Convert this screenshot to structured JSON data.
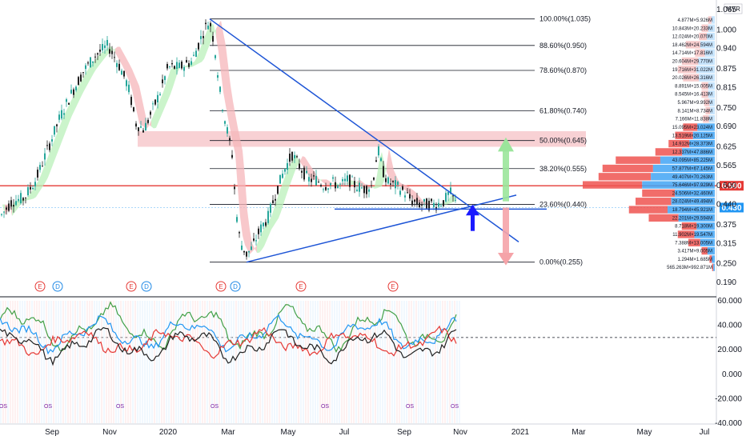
{
  "currency": "MYR",
  "chart_data": [
    {
      "type": "candlestick",
      "panel": "price",
      "x_ticks": [
        "Sep",
        "Nov",
        "2020",
        "Mar",
        "May",
        "Jul",
        "Sep",
        "Nov",
        "2021",
        "Mar",
        "May",
        "Jul"
      ],
      "y_ticks": [
        "1.065",
        "1.000",
        "0.940",
        "0.875",
        "0.815",
        "0.750",
        "0.690",
        "0.625",
        "0.565",
        "0.500",
        "0.440",
        "0.375",
        "0.315",
        "0.250",
        "0.190"
      ],
      "ylim": [
        0.19,
        1.065
      ],
      "last_price": "0.430",
      "resistance_level": "0.500",
      "fib_levels": [
        {
          "label": "100.00%(1.035)",
          "value": 1.035
        },
        {
          "label": "88.60%(0.950)",
          "value": 0.95
        },
        {
          "label": "78.60%(0.870)",
          "value": 0.87
        },
        {
          "label": "61.80%(0.740)",
          "value": 0.74
        },
        {
          "label": "50.00%(0.645)",
          "value": 0.645
        },
        {
          "label": "38.20%(0.555)",
          "value": 0.555
        },
        {
          "label": "23.60%(0.440)",
          "value": 0.44
        },
        {
          "label": "0.00%(0.255)",
          "value": 0.255
        }
      ],
      "volume_profile_labels": [
        "4.877M×5.926M",
        "10.843M×20.233M",
        "12.024M×20.070M",
        "18.462M×24.594M",
        "14.714M×17.816M",
        "20.604M×29.770M",
        "19.716M×31.022M",
        "20.026M×26.316M",
        "8.891M×15.005M",
        "8.545M×16.413M",
        "5.967M×9.992M",
        "8.141M×8.734M",
        "7.166M×11.838M",
        "15.095M×23.024M",
        "13.519M×20.125M",
        "14.912M×28.373M",
        "12.337M×47.886M",
        "43.095M×85.225M",
        "57.877M×67.145M",
        "49.407M×70.263M",
        "75.646M×97.929M",
        "24.506M×32.460M",
        "28.024M×49.494M",
        "18.794M×45.921M",
        "22.201M×29.594M",
        "8.718M×19.300M",
        "11.902M×19.547M",
        "7.388M×13.005M",
        "3.417M×9.005M",
        "1.294M×1.685M",
        "565.263M×992.871M"
      ],
      "event_markers": [
        "E",
        "D",
        "E",
        "D",
        "E",
        "D",
        "E",
        "E"
      ],
      "annotations": [
        "OS"
      ]
    },
    {
      "type": "line",
      "panel": "oscillator",
      "y_ticks": [
        "60.000",
        "40.000",
        "20.000",
        "0.000",
        "-20.000",
        "-40.000"
      ],
      "ylim": [
        -40,
        60
      ],
      "reference_lines": [
        30
      ],
      "series": [
        {
          "color": "#2196f3"
        },
        {
          "color": "#e53935"
        },
        {
          "color": "#43a047"
        },
        {
          "color": "#212121"
        }
      ]
    }
  ],
  "colors": {
    "up_candle": "#26a69a",
    "down_candle": "#212121",
    "trendline": "#1e55d6",
    "resistance": "#e53935",
    "fib_line": "#131722",
    "zone_fill": "#f7c9cc",
    "last_price_tag": "#2196f3",
    "resistance_tag": "#e53935",
    "arrow_up": "#1a1aff",
    "projection_up": "#9be59b",
    "projection_down": "#f5a3a8",
    "vp_blue": "#90caf9",
    "vp_red": "#ef9a9a"
  }
}
